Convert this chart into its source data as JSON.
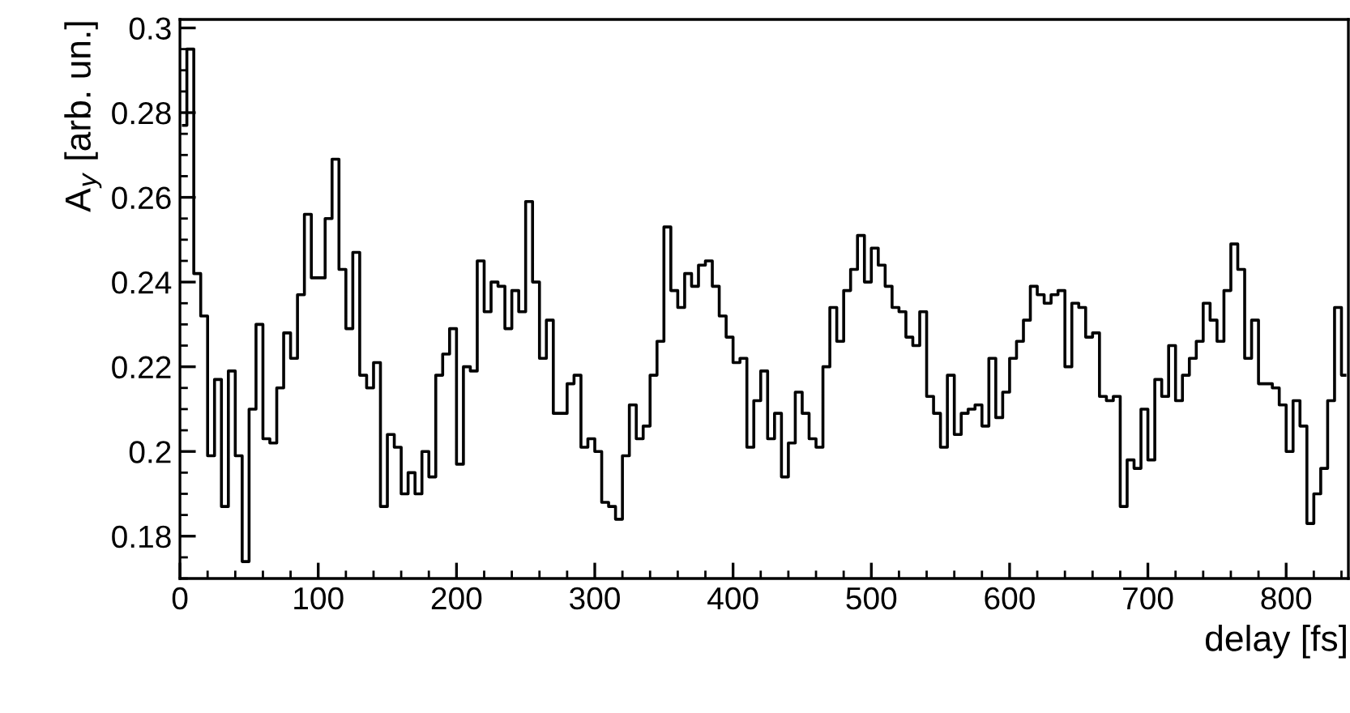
{
  "chart_data": {
    "type": "step",
    "xlabel": "delay [fs]",
    "ylabel": "A$_{y}$ [arb. un.]",
    "color": "#000000",
    "x": [
      2.5,
      7.5,
      12.5,
      17.5,
      22.5,
      27.5,
      32.5,
      37.5,
      42.5,
      47.5,
      52.5,
      57.5,
      62.5,
      67.5,
      72.5,
      77.5,
      82.5,
      87.5,
      92.5,
      97.5,
      102.5,
      107.5,
      112.5,
      117.5,
      122.5,
      127.5,
      132.5,
      137.5,
      142.5,
      147.5,
      152.5,
      157.5,
      162.5,
      167.5,
      172.5,
      177.5,
      182.5,
      187.5,
      192.5,
      197.5,
      202.5,
      207.5,
      212.5,
      217.5,
      222.5,
      227.5,
      232.5,
      237.5,
      242.5,
      247.5,
      252.5,
      257.5,
      262.5,
      267.5,
      272.5,
      277.5,
      282.5,
      287.5,
      292.5,
      297.5,
      302.5,
      307.5,
      312.5,
      317.5,
      322.5,
      327.5,
      332.5,
      337.5,
      342.5,
      347.5,
      352.5,
      357.5,
      362.5,
      367.5,
      372.5,
      377.5,
      382.5,
      387.5,
      392.5,
      397.5,
      402.5,
      407.5,
      412.5,
      417.5,
      422.5,
      427.5,
      432.5,
      437.5,
      442.5,
      447.5,
      452.5,
      457.5,
      462.5,
      467.5,
      472.5,
      477.5,
      482.5,
      487.5,
      492.5,
      497.5,
      502.5,
      507.5,
      512.5,
      517.5,
      522.5,
      527.5,
      532.5,
      537.5,
      542.5,
      547.5,
      552.5,
      557.5,
      562.5,
      567.5,
      572.5,
      577.5,
      582.5,
      587.5,
      592.5,
      597.5,
      602.5,
      607.5,
      612.5,
      617.5,
      622.5,
      627.5,
      632.5,
      637.5,
      642.5,
      647.5,
      652.5,
      657.5,
      662.5,
      667.5,
      672.5,
      677.5,
      682.5,
      687.5,
      692.5,
      697.5,
      702.5,
      707.5,
      712.5,
      717.5,
      722.5,
      727.5,
      732.5,
      737.5,
      742.5,
      747.5,
      752.5,
      757.5,
      762.5,
      767.5,
      772.5,
      777.5,
      782.5,
      787.5,
      792.5,
      797.5,
      802.5,
      807.5,
      812.5,
      817.5,
      822.5,
      827.5,
      832.5,
      837.5,
      842.5
    ],
    "values": [
      0.277,
      0.295,
      0.242,
      0.232,
      0.199,
      0.217,
      0.187,
      0.219,
      0.199,
      0.174,
      0.21,
      0.23,
      0.203,
      0.202,
      0.215,
      0.228,
      0.222,
      0.237,
      0.256,
      0.241,
      0.241,
      0.255,
      0.269,
      0.243,
      0.229,
      0.247,
      0.218,
      0.215,
      0.221,
      0.187,
      0.204,
      0.201,
      0.19,
      0.195,
      0.19,
      0.2,
      0.194,
      0.218,
      0.223,
      0.229,
      0.197,
      0.22,
      0.219,
      0.245,
      0.233,
      0.24,
      0.239,
      0.229,
      0.238,
      0.233,
      0.259,
      0.24,
      0.222,
      0.231,
      0.209,
      0.209,
      0.216,
      0.218,
      0.201,
      0.203,
      0.2,
      0.188,
      0.187,
      0.184,
      0.199,
      0.211,
      0.203,
      0.206,
      0.218,
      0.226,
      0.253,
      0.238,
      0.234,
      0.242,
      0.239,
      0.244,
      0.245,
      0.239,
      0.232,
      0.227,
      0.221,
      0.222,
      0.201,
      0.212,
      0.219,
      0.203,
      0.209,
      0.194,
      0.202,
      0.214,
      0.209,
      0.203,
      0.201,
      0.22,
      0.234,
      0.226,
      0.238,
      0.243,
      0.251,
      0.24,
      0.248,
      0.244,
      0.239,
      0.234,
      0.233,
      0.227,
      0.225,
      0.233,
      0.213,
      0.209,
      0.201,
      0.218,
      0.204,
      0.209,
      0.21,
      0.211,
      0.206,
      0.222,
      0.208,
      0.214,
      0.222,
      0.226,
      0.231,
      0.239,
      0.237,
      0.235,
      0.237,
      0.238,
      0.22,
      0.235,
      0.234,
      0.227,
      0.228,
      0.213,
      0.212,
      0.213,
      0.187,
      0.198,
      0.196,
      0.21,
      0.198,
      0.217,
      0.213,
      0.225,
      0.212,
      0.218,
      0.222,
      0.226,
      0.235,
      0.231,
      0.226,
      0.238,
      0.249,
      0.243,
      0.222,
      0.231,
      0.216,
      0.216,
      0.215,
      0.211,
      0.2,
      0.212,
      0.206,
      0.183,
      0.19,
      0.196,
      0.212,
      0.234,
      0.218
    ],
    "xlim": [
      0,
      845
    ],
    "xticks": [
      0,
      100,
      200,
      300,
      400,
      500,
      600,
      700,
      800
    ],
    "ylim": [
      0.17,
      0.302
    ],
    "yticks": [
      0.18,
      0.2,
      0.22,
      0.24,
      0.26,
      0.28,
      0.3
    ],
    "grid": false
  }
}
